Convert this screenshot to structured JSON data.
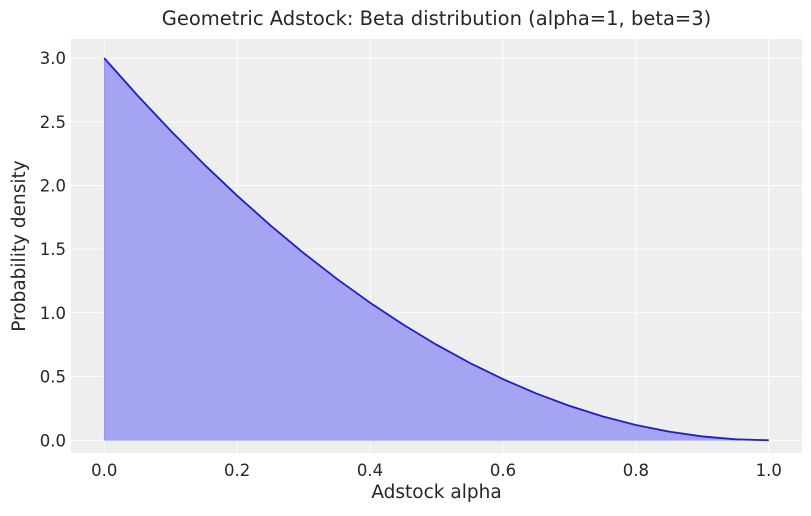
{
  "chart_data": {
    "type": "area",
    "title": "Geometric Adstock: Beta distribution (alpha=1, beta=3)",
    "xlabel": "Adstock alpha",
    "ylabel": "Probability density",
    "xlim": [
      -0.05,
      1.05
    ],
    "ylim": [
      -0.1,
      3.15
    ],
    "xticks": [
      0.0,
      0.2,
      0.4,
      0.6,
      0.8,
      1.0
    ],
    "xtick_labels": [
      "0.0",
      "0.2",
      "0.4",
      "0.6",
      "0.8",
      "1.0"
    ],
    "yticks": [
      0.0,
      0.5,
      1.0,
      1.5,
      2.0,
      2.5,
      3.0
    ],
    "ytick_labels": [
      "0.0",
      "0.5",
      "1.0",
      "1.5",
      "2.0",
      "2.5",
      "3.0"
    ],
    "grid": true,
    "legend": "none",
    "series": [
      {
        "x": [
          0.0,
          0.05,
          0.1,
          0.15,
          0.2,
          0.25,
          0.3,
          0.35,
          0.4,
          0.45,
          0.5,
          0.55,
          0.6,
          0.65,
          0.7,
          0.75,
          0.8,
          0.85,
          0.9,
          0.95,
          1.0
        ],
        "y": [
          3.0,
          2.7075,
          2.43,
          2.1675,
          1.92,
          1.6875,
          1.47,
          1.2675,
          1.08,
          0.9075,
          0.75,
          0.6075,
          0.48,
          0.3675,
          0.27,
          0.1875,
          0.12,
          0.0675,
          0.03,
          0.0075,
          0.0
        ],
        "line_color": "#1f1fc7",
        "fill_color": "#a4a4f3"
      }
    ],
    "colors": {
      "plot_background": "#eeeeee",
      "grid": "#ffffff",
      "line": "#1f1fc7",
      "fill": "#a4a4f3"
    }
  }
}
